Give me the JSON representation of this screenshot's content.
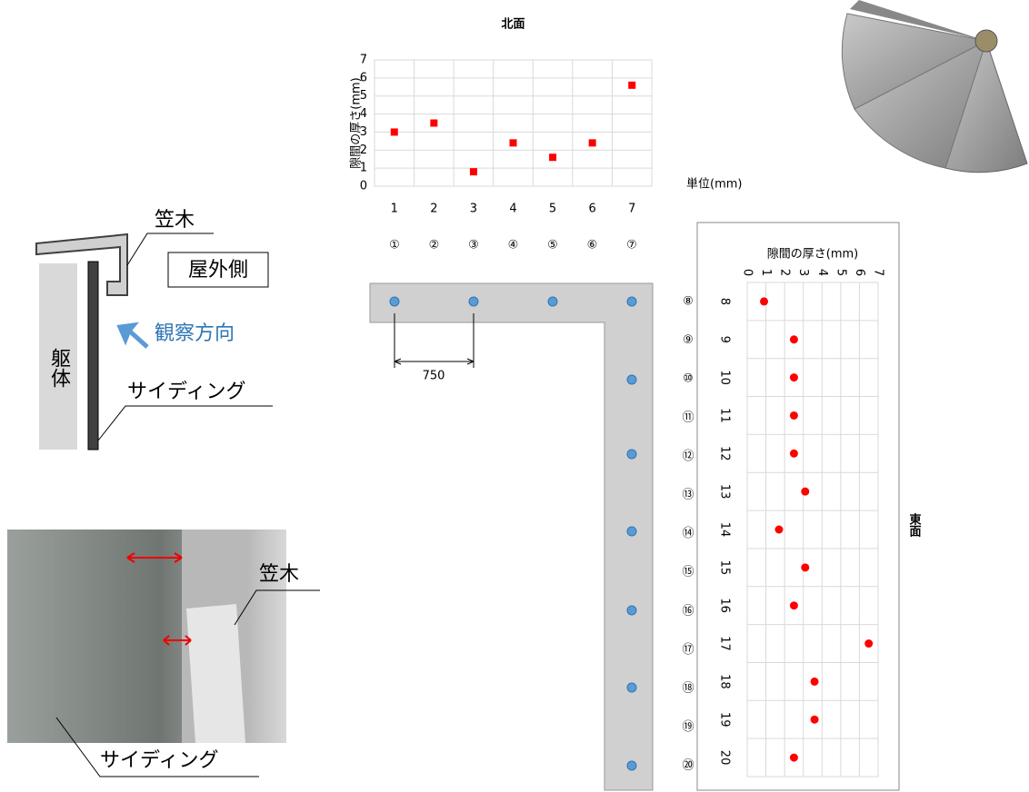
{
  "chart_data": [
    {
      "type": "scatter",
      "title": "北面",
      "y_label": "隙間の厚さ(mm)",
      "categories": [
        "1",
        "2",
        "3",
        "4",
        "5",
        "6",
        "7"
      ],
      "values": [
        3.0,
        3.5,
        0.8,
        2.4,
        1.6,
        2.4,
        5.6
      ],
      "color": "#ff0000",
      "ylim": [
        0,
        7
      ],
      "yticks": [
        0,
        1,
        2,
        3,
        4,
        5,
        6,
        7
      ],
      "grid": true
    },
    {
      "type": "scatter",
      "orientation": "horizontal",
      "title": "東面",
      "x_label": "隙間の厚さ(mm)",
      "categories": [
        "8",
        "9",
        "10",
        "11",
        "12",
        "13",
        "14",
        "15",
        "16",
        "17",
        "18",
        "19",
        "20"
      ],
      "values": [
        0.9,
        2.5,
        2.5,
        2.5,
        2.5,
        3.1,
        1.7,
        3.1,
        2.5,
        6.5,
        3.6,
        3.6,
        2.5
      ],
      "color": "#ff0000",
      "xlim": [
        0,
        7
      ],
      "xticks": [
        0,
        1,
        2,
        3,
        4,
        5,
        6,
        7
      ],
      "grid": true
    }
  ],
  "unit_note": "単位(mm)",
  "plan": {
    "markers": [
      "①",
      "②",
      "③",
      "④",
      "⑤",
      "⑥",
      "⑦",
      "⑧",
      "⑨",
      "⑩",
      "⑪",
      "⑫",
      "⑬",
      "⑭",
      "⑮",
      "⑯",
      "⑰",
      "⑱",
      "⑲",
      "⑳"
    ],
    "dimension": "750"
  },
  "section": {
    "kasagi": "笠木",
    "outside": "屋外側",
    "direction": "観察方向",
    "body": "躯体",
    "siding": "サイディング"
  },
  "photo": {
    "kasagi": "笠木",
    "siding": "サイディング"
  }
}
